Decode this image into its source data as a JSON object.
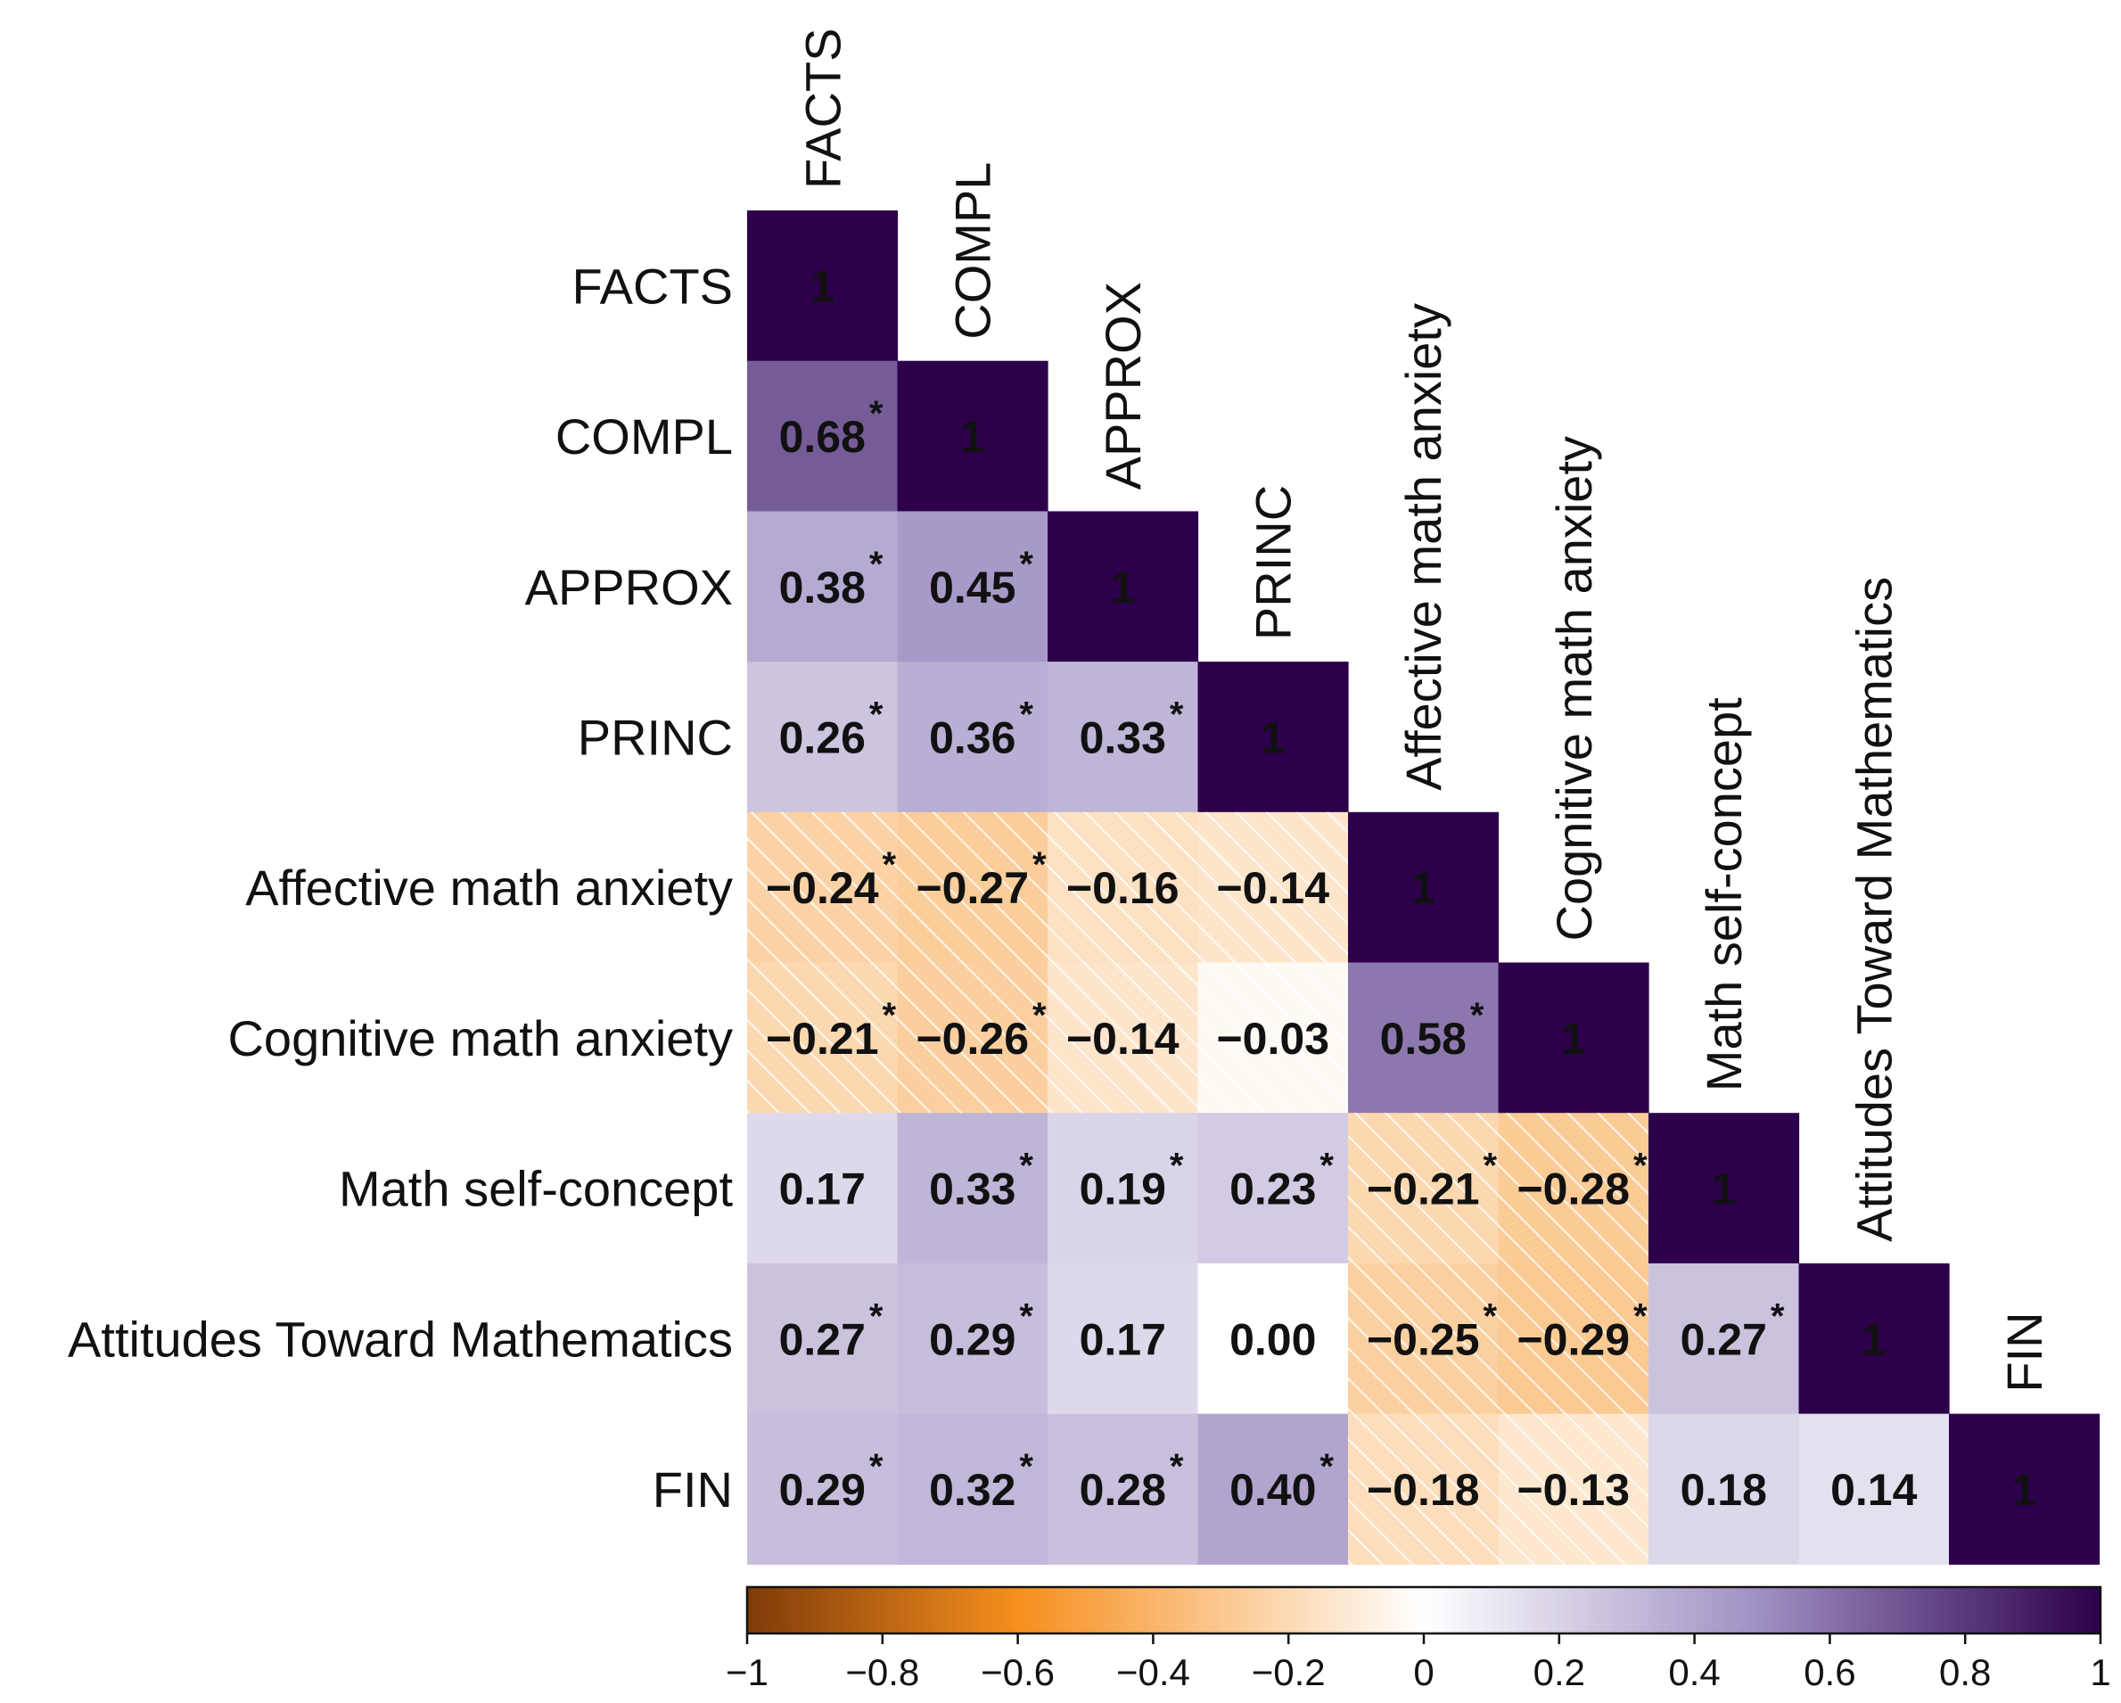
{
  "chart_data": {
    "type": "heatmap",
    "variables": [
      "FACTS",
      "COMPL",
      "APPROX",
      "PRINC",
      "Affective math anxiety",
      "Cognitive math anxiety",
      "Math self-concept",
      "Attitudes Toward Mathematics",
      "FIN"
    ],
    "cells": [
      {
        "row": 0,
        "col": 0,
        "value": 1,
        "label": "1",
        "sig": false
      },
      {
        "row": 1,
        "col": 0,
        "value": 0.68,
        "label": "0.68",
        "sig": true
      },
      {
        "row": 1,
        "col": 1,
        "value": 1,
        "label": "1",
        "sig": false
      },
      {
        "row": 2,
        "col": 0,
        "value": 0.38,
        "label": "0.38",
        "sig": true
      },
      {
        "row": 2,
        "col": 1,
        "value": 0.45,
        "label": "0.45",
        "sig": true
      },
      {
        "row": 2,
        "col": 2,
        "value": 1,
        "label": "1",
        "sig": false
      },
      {
        "row": 3,
        "col": 0,
        "value": 0.26,
        "label": "0.26",
        "sig": true
      },
      {
        "row": 3,
        "col": 1,
        "value": 0.36,
        "label": "0.36",
        "sig": true
      },
      {
        "row": 3,
        "col": 2,
        "value": 0.33,
        "label": "0.33",
        "sig": true
      },
      {
        "row": 3,
        "col": 3,
        "value": 1,
        "label": "1",
        "sig": false
      },
      {
        "row": 4,
        "col": 0,
        "value": -0.24,
        "label": "−0.24",
        "sig": true
      },
      {
        "row": 4,
        "col": 1,
        "value": -0.27,
        "label": "−0.27",
        "sig": true
      },
      {
        "row": 4,
        "col": 2,
        "value": -0.16,
        "label": "−0.16",
        "sig": false
      },
      {
        "row": 4,
        "col": 3,
        "value": -0.14,
        "label": "−0.14",
        "sig": false
      },
      {
        "row": 4,
        "col": 4,
        "value": 1,
        "label": "1",
        "sig": false
      },
      {
        "row": 5,
        "col": 0,
        "value": -0.21,
        "label": "−0.21",
        "sig": true
      },
      {
        "row": 5,
        "col": 1,
        "value": -0.26,
        "label": "−0.26",
        "sig": true
      },
      {
        "row": 5,
        "col": 2,
        "value": -0.14,
        "label": "−0.14",
        "sig": false
      },
      {
        "row": 5,
        "col": 3,
        "value": -0.03,
        "label": "−0.03",
        "sig": false
      },
      {
        "row": 5,
        "col": 4,
        "value": 0.58,
        "label": "0.58",
        "sig": true
      },
      {
        "row": 5,
        "col": 5,
        "value": 1,
        "label": "1",
        "sig": false
      },
      {
        "row": 6,
        "col": 0,
        "value": 0.17,
        "label": "0.17",
        "sig": false
      },
      {
        "row": 6,
        "col": 1,
        "value": 0.33,
        "label": "0.33",
        "sig": true
      },
      {
        "row": 6,
        "col": 2,
        "value": 0.19,
        "label": "0.19",
        "sig": true
      },
      {
        "row": 6,
        "col": 3,
        "value": 0.23,
        "label": "0.23",
        "sig": true
      },
      {
        "row": 6,
        "col": 4,
        "value": -0.21,
        "label": "−0.21",
        "sig": true
      },
      {
        "row": 6,
        "col": 5,
        "value": -0.28,
        "label": "−0.28",
        "sig": true
      },
      {
        "row": 6,
        "col": 6,
        "value": 1,
        "label": "1",
        "sig": false
      },
      {
        "row": 7,
        "col": 0,
        "value": 0.27,
        "label": "0.27",
        "sig": true
      },
      {
        "row": 7,
        "col": 1,
        "value": 0.29,
        "label": "0.29",
        "sig": true
      },
      {
        "row": 7,
        "col": 2,
        "value": 0.17,
        "label": "0.17",
        "sig": false
      },
      {
        "row": 7,
        "col": 3,
        "value": 0.0,
        "label": "0.00",
        "sig": false
      },
      {
        "row": 7,
        "col": 4,
        "value": -0.25,
        "label": "−0.25",
        "sig": true
      },
      {
        "row": 7,
        "col": 5,
        "value": -0.29,
        "label": "−0.29",
        "sig": true
      },
      {
        "row": 7,
        "col": 6,
        "value": 0.27,
        "label": "0.27",
        "sig": true
      },
      {
        "row": 7,
        "col": 7,
        "value": 1,
        "label": "1",
        "sig": false
      },
      {
        "row": 8,
        "col": 0,
        "value": 0.29,
        "label": "0.29",
        "sig": true
      },
      {
        "row": 8,
        "col": 1,
        "value": 0.32,
        "label": "0.32",
        "sig": true
      },
      {
        "row": 8,
        "col": 2,
        "value": 0.28,
        "label": "0.28",
        "sig": true
      },
      {
        "row": 8,
        "col": 3,
        "value": 0.4,
        "label": "0.40",
        "sig": true
      },
      {
        "row": 8,
        "col": 4,
        "value": -0.18,
        "label": "−0.18",
        "sig": false
      },
      {
        "row": 8,
        "col": 5,
        "value": -0.13,
        "label": "−0.13",
        "sig": false
      },
      {
        "row": 8,
        "col": 6,
        "value": 0.18,
        "label": "0.18",
        "sig": false
      },
      {
        "row": 8,
        "col": 7,
        "value": 0.14,
        "label": "0.14",
        "sig": false
      },
      {
        "row": 8,
        "col": 8,
        "value": 1,
        "label": "1",
        "sig": false
      }
    ],
    "sig_marker": "*",
    "colorbar": {
      "range": [
        -1,
        1
      ],
      "ticks": [
        -1,
        -0.8,
        -0.6,
        -0.4,
        -0.2,
        0,
        0.2,
        0.4,
        0.6,
        0.8,
        1
      ],
      "tick_labels": [
        "−1",
        "−0.8",
        "−0.6",
        "−0.4",
        "−0.2",
        "0",
        "0.2",
        "0.4",
        "0.6",
        "0.8",
        "1"
      ],
      "placement": "bottom",
      "colors": {
        "negative_end": "#7f3b08",
        "negative_mid": "#f68f1e",
        "zero": "#ffffff",
        "positive_mid": "#9e8fc2",
        "positive_end": "#2d004b"
      }
    },
    "negative_hatch": true
  }
}
